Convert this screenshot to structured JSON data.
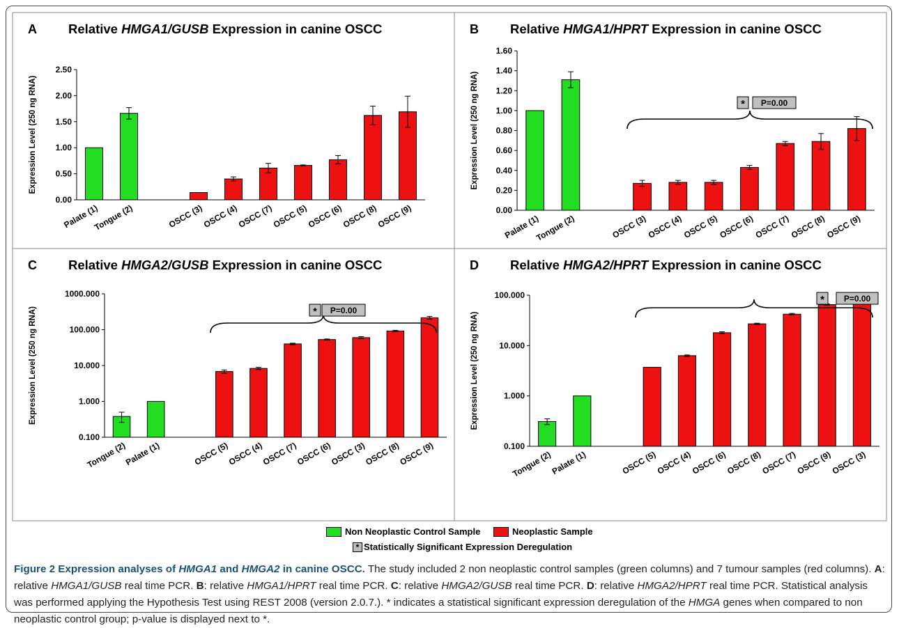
{
  "colors": {
    "control": "#22dd22",
    "neoplastic": "#ee1111",
    "frame": "#888888",
    "annotation_box": "#c0c0c0"
  },
  "legend": {
    "control": "Non Neoplastic Control Sample",
    "neoplastic": "Neoplastic Sample",
    "significant": "Statistically Significant Expression Deregulation",
    "significant_symbol": "*"
  },
  "caption": {
    "lead_1": "Figure 2 Expression analyses of ",
    "lead_gene1": "HMGA1",
    "lead_2": " and ",
    "lead_gene2": "HMGA2",
    "lead_3": " in canine OSCC.",
    "t1": " The study included 2 non neoplastic control samples (green columns) and 7 tumour samples (red columns). ",
    "a_label": "A",
    "a_text_1": ": relative ",
    "a_gene": "HMGA1/GUSB",
    "a_text_2": " real time PCR. ",
    "b_label": "B",
    "b_text_1": ": relative ",
    "b_gene": "HMGA1/HPRT",
    "b_text_2": " real time PCR. ",
    "c_label": "C",
    "c_text_1": ": relative ",
    "c_gene": "HMGA2/GUSB",
    "c_text_2": " real time PCR. ",
    "d_label": "D",
    "d_text_1": ": relative ",
    "d_gene": "HMGA2/HPRT",
    "d_text_2": " real time PCR. Statistical analysis was performed applying the Hypothesis Test using REST 2008 (version 2.0.7.). * indicates a statistical significant expression deregulation of the ",
    "d_gene2": "HMGA",
    "d_text_3": " genes when compared to non neoplastic control group; p-value is displayed next to *."
  },
  "chart_data": [
    {
      "panel": "A",
      "type": "bar",
      "title_pre": "Relative ",
      "title_gene": "HMGA1/GUSB",
      "title_post": " Expression in canine OSCC",
      "ylabel": "Expression Level (250 ng RNA)",
      "scale": "linear",
      "ylim": [
        0,
        2.5
      ],
      "yticks": [
        "0.00",
        "0.50",
        "1.00",
        "1.50",
        "2.00",
        "2.50"
      ],
      "ytick_values": [
        0,
        0.5,
        1,
        1.5,
        2,
        2.5
      ],
      "categories": [
        "Palate (1)",
        "Tongue (2)",
        "",
        "OSCC (3)",
        "OSCC (4)",
        "OSCC (7)",
        "OSCC (5)",
        "OSCC (6)",
        "OSCC (8)",
        "OSCC (9)"
      ],
      "values": [
        1.0,
        1.66,
        null,
        0.14,
        0.4,
        0.61,
        0.66,
        0.77,
        1.62,
        1.69
      ],
      "errors": [
        0,
        0.11,
        null,
        0,
        0.04,
        0.09,
        0.01,
        0.08,
        0.18,
        0.3
      ],
      "groups": [
        "control",
        "control",
        null,
        "neoplastic",
        "neoplastic",
        "neoplastic",
        "neoplastic",
        "neoplastic",
        "neoplastic",
        "neoplastic"
      ],
      "annotation": null
    },
    {
      "panel": "B",
      "type": "bar",
      "title_pre": "Relative ",
      "title_gene": "HMGA1/HPRT",
      "title_post": " Expression in canine OSCC",
      "ylabel": "Expression Level (250 ng RNA)",
      "scale": "linear",
      "ylim": [
        0,
        1.6
      ],
      "yticks": [
        "0.00",
        "0.20",
        "0.40",
        "0.60",
        "0.80",
        "1.00",
        "1.20",
        "1.40",
        "1.60"
      ],
      "ytick_values": [
        0,
        0.2,
        0.4,
        0.6,
        0.8,
        1,
        1.2,
        1.4,
        1.6
      ],
      "categories": [
        "Palate (1)",
        "Tongue (2)",
        "",
        "OSCC (3)",
        "OSCC (4)",
        "OSCC (5)",
        "OSCC (6)",
        "OSCC (7)",
        "OSCC (8)",
        "OSCC (9)"
      ],
      "values": [
        1.0,
        1.31,
        null,
        0.27,
        0.28,
        0.28,
        0.43,
        0.67,
        0.69,
        0.82
      ],
      "errors": [
        0,
        0.08,
        null,
        0.03,
        0.02,
        0.02,
        0.02,
        0.02,
        0.08,
        0.12
      ],
      "groups": [
        "control",
        "control",
        null,
        "neoplastic",
        "neoplastic",
        "neoplastic",
        "neoplastic",
        "neoplastic",
        "neoplastic",
        "neoplastic"
      ],
      "annotation": {
        "symbol": "*",
        "text": "P=0.00"
      }
    },
    {
      "panel": "C",
      "type": "bar",
      "title_pre": "Relative ",
      "title_gene": "HMGA2/GUSB",
      "title_post": " Expression in canine OSCC",
      "ylabel": "Expression Level (250 ng RNA)",
      "scale": "log",
      "ylim": [
        0.1,
        1000
      ],
      "yticks": [
        "0.100",
        "1.000",
        "10.000",
        "100.000",
        "1000.000"
      ],
      "ytick_values": [
        0.1,
        1,
        10,
        100,
        1000
      ],
      "categories": [
        "Tongue (2)",
        "Palate (1)",
        "",
        "OSCC (5)",
        "OSCC (4)",
        "OSCC (7)",
        "OSCC (6)",
        "OSCC (3)",
        "OSCC (8)",
        "OSCC (9)"
      ],
      "values": [
        0.38,
        1.0,
        null,
        6.8,
        8.3,
        40,
        53,
        60,
        92,
        215
      ],
      "errors": [
        0.12,
        0,
        null,
        0.7,
        0.6,
        2,
        2,
        4,
        4,
        20
      ],
      "groups": [
        "control",
        "control",
        null,
        "neoplastic",
        "neoplastic",
        "neoplastic",
        "neoplastic",
        "neoplastic",
        "neoplastic",
        "neoplastic"
      ],
      "annotation": {
        "symbol": "*",
        "text": "P=0.00"
      }
    },
    {
      "panel": "D",
      "type": "bar",
      "title_pre": "Relative ",
      "title_gene": "HMGA2/HPRT",
      "title_post": " Expression in canine OSCC",
      "ylabel": "Expression Level (250 ng RNA)",
      "scale": "log",
      "ylim": [
        0.1,
        100
      ],
      "yticks": [
        "0.100",
        "1.000",
        "10.000",
        "100.000"
      ],
      "ytick_values": [
        0.1,
        1,
        10,
        100
      ],
      "categories": [
        "Tongue (2)",
        "Palate (1)",
        "",
        "OSCC (5)",
        "OSCC (4)",
        "OSCC (6)",
        "OSCC (8)",
        "OSCC (7)",
        "OSCC (9)",
        "OSCC (3)"
      ],
      "values": [
        0.31,
        1.0,
        null,
        3.7,
        6.3,
        18,
        27,
        42,
        65,
        80
      ],
      "errors": [
        0.04,
        0,
        null,
        0,
        0.2,
        0.8,
        0.8,
        1.5,
        2,
        0
      ],
      "groups": [
        "control",
        "control",
        null,
        "neoplastic",
        "neoplastic",
        "neoplastic",
        "neoplastic",
        "neoplastic",
        "neoplastic",
        "neoplastic"
      ],
      "annotation": {
        "symbol": "*",
        "text": "P=0.00"
      }
    }
  ]
}
